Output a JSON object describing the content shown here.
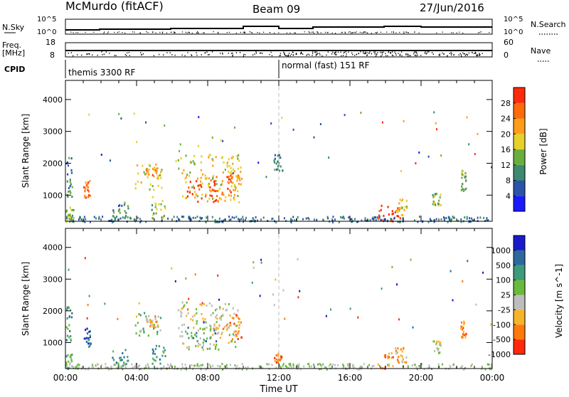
{
  "header": {
    "station": "McMurdo (fitACF)",
    "beam": "Beam 09",
    "date": "27/Jun/2016"
  },
  "top_panels": {
    "nsky_label": "N.Sky",
    "nsky_ticks": [
      "10^5",
      "10^0"
    ],
    "nsearch_label": "N.Search",
    "nsearch_ticks": [
      "10^5",
      "10^0"
    ],
    "freq_label": "Freq.",
    "freq_unit": "[MHz]",
    "freq_ticks": [
      "18",
      "8"
    ],
    "nave_label": "Nave",
    "nave_ticks": [
      "60",
      "0"
    ],
    "cpid_label": "CPID",
    "cpid_segments": [
      {
        "label": "themis 3300 RF",
        "start_ut": 0
      },
      {
        "label": "normal (fast) 151 RF",
        "start_ut": 12
      }
    ]
  },
  "x_axis": {
    "label": "Time UT",
    "ticks": [
      "00:00",
      "04:00",
      "08:00",
      "12:00",
      "16:00",
      "20:00",
      "00:00"
    ],
    "range_hours": [
      0,
      24
    ]
  },
  "chart_data": [
    {
      "type": "heatmap",
      "quantity": "Power",
      "ylabel": "Slant Range [km]",
      "yticks": [
        "1000",
        "2000",
        "3000",
        "4000"
      ],
      "ylim": [
        180,
        4600
      ],
      "colorbar_label": "Power [dB]",
      "colorbar_ticks": [
        "4",
        "8",
        "12",
        "16",
        "20",
        "24",
        "28"
      ],
      "colorbar_range": [
        0,
        32
      ],
      "colors": [
        "#1a1aff",
        "#2b53a7",
        "#3d8a70",
        "#6aae3c",
        "#e8d02a",
        "#ff9d1a",
        "#ff6a0a",
        "#ff2a0a"
      ],
      "regions": [
        {
          "t": [
            0.0,
            0.45
          ],
          "r": [
            180,
            650
          ],
          "level": 3
        },
        {
          "t": [
            0.0,
            0.35
          ],
          "r": [
            950,
            2200
          ],
          "level": 2
        },
        {
          "t": [
            1.0,
            1.4
          ],
          "r": [
            900,
            1500
          ],
          "level": 6
        },
        {
          "t": [
            2.6,
            3.5
          ],
          "r": [
            300,
            800
          ],
          "level": 2
        },
        {
          "t": [
            3.9,
            5.4
          ],
          "r": [
            1200,
            2000
          ],
          "level": 4
        },
        {
          "t": [
            4.5,
            5.2
          ],
          "r": [
            1500,
            1900
          ],
          "level": 5
        },
        {
          "t": [
            4.8,
            5.6
          ],
          "r": [
            300,
            1000
          ],
          "level": 3
        },
        {
          "t": [
            6.3,
            9.8
          ],
          "r": [
            800,
            2300
          ],
          "level": 4
        },
        {
          "t": [
            6.8,
            8.5
          ],
          "r": [
            800,
            1500
          ],
          "level": 7
        },
        {
          "t": [
            8.2,
            9.3
          ],
          "r": [
            1000,
            1800
          ],
          "level": 6
        },
        {
          "t": [
            9.2,
            9.9
          ],
          "r": [
            1100,
            1900
          ],
          "level": 5
        },
        {
          "t": [
            11.7,
            12.2
          ],
          "r": [
            1800,
            2300
          ],
          "level": 2
        },
        {
          "t": [
            17.5,
            18.8
          ],
          "r": [
            180,
            700
          ],
          "level": 7
        },
        {
          "t": [
            18.5,
            19.2
          ],
          "r": [
            400,
            900
          ],
          "level": 4
        },
        {
          "t": [
            20.6,
            21.1
          ],
          "r": [
            700,
            1100
          ],
          "level": 3
        },
        {
          "t": [
            22.2,
            22.5
          ],
          "r": [
            1100,
            1800
          ],
          "level": 3
        }
      ]
    },
    {
      "type": "heatmap",
      "quantity": "Velocity",
      "ylabel": "Slant Range [km]",
      "yticks": [
        "1000",
        "2000",
        "3000",
        "4000"
      ],
      "ylim": [
        180,
        4600
      ],
      "colorbar_label": "Velocity [m s^-1]",
      "colorbar_ticks": [
        "1000",
        "500",
        "100",
        "25",
        "-25",
        "-100",
        "-500",
        "-1000"
      ],
      "colors": [
        "#1a1acc",
        "#2b6a9a",
        "#3d9a7a",
        "#6aba3c",
        "#bdbdbd",
        "#f5b42a",
        "#ff7a0a",
        "#ff2a0a"
      ],
      "regions": [
        {
          "t": [
            0.0,
            0.45
          ],
          "r": [
            180,
            650
          ],
          "level": 3
        },
        {
          "t": [
            0.0,
            0.35
          ],
          "r": [
            950,
            2200
          ],
          "level": 2
        },
        {
          "t": [
            1.0,
            1.4
          ],
          "r": [
            900,
            1500
          ],
          "level": 1
        },
        {
          "t": [
            2.6,
            3.5
          ],
          "r": [
            300,
            800
          ],
          "level": 2
        },
        {
          "t": [
            3.9,
            5.4
          ],
          "r": [
            1200,
            2000
          ],
          "level": 3
        },
        {
          "t": [
            4.5,
            5.2
          ],
          "r": [
            1500,
            1900
          ],
          "level": 5
        },
        {
          "t": [
            4.8,
            5.6
          ],
          "r": [
            300,
            1000
          ],
          "level": 2
        },
        {
          "t": [
            6.3,
            9.8
          ],
          "r": [
            800,
            2300
          ],
          "level": 4
        },
        {
          "t": [
            6.8,
            8.5
          ],
          "r": [
            800,
            1500
          ],
          "level": 2
        },
        {
          "t": [
            8.2,
            9.3
          ],
          "r": [
            1000,
            1800
          ],
          "level": 5
        },
        {
          "t": [
            9.2,
            9.9
          ],
          "r": [
            1100,
            1900
          ],
          "level": 6
        },
        {
          "t": [
            11.7,
            12.2
          ],
          "r": [
            400,
            700
          ],
          "level": 6
        },
        {
          "t": [
            17.5,
            18.8
          ],
          "r": [
            200,
            700
          ],
          "level": 6
        },
        {
          "t": [
            18.5,
            19.2
          ],
          "r": [
            400,
            900
          ],
          "level": 5
        },
        {
          "t": [
            20.6,
            21.1
          ],
          "r": [
            700,
            1100
          ],
          "level": 4
        },
        {
          "t": [
            22.2,
            22.5
          ],
          "r": [
            1100,
            1700
          ],
          "level": 6
        }
      ]
    }
  ]
}
